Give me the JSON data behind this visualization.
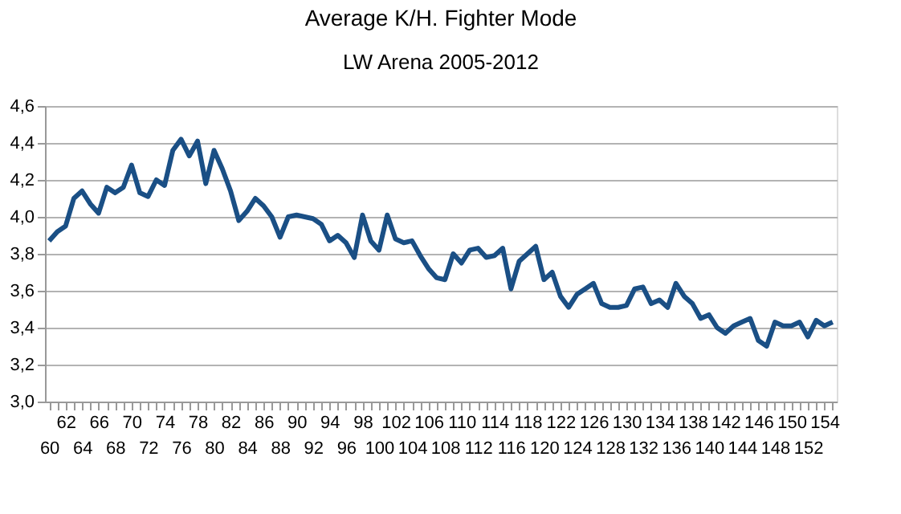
{
  "chart_data": {
    "type": "line",
    "title": "Average K/H. Fighter Mode",
    "subtitle": "LW Arena 2005-2012",
    "categories": [
      "60",
      null,
      "62",
      null,
      "64",
      null,
      "66",
      null,
      "68",
      null,
      "70",
      null,
      "72",
      null,
      "74",
      null,
      "76",
      null,
      "78",
      null,
      "80",
      null,
      "82",
      null,
      "84",
      null,
      "86",
      null,
      "88",
      null,
      "90",
      null,
      "92",
      null,
      "94",
      null,
      "96",
      null,
      "98",
      null,
      "100",
      null,
      "102",
      null,
      "104",
      null,
      "106",
      null,
      "108",
      null,
      "110",
      null,
      "112",
      null,
      "114",
      null,
      "116",
      null,
      "118",
      null,
      "120",
      null,
      "122",
      null,
      "124",
      null,
      "126",
      null,
      "128",
      null,
      "130",
      null,
      "132",
      null,
      "134",
      null,
      "136",
      null,
      "138",
      null,
      "140",
      null,
      "142",
      null,
      "144",
      null,
      "146",
      null,
      "148",
      null,
      "150",
      null,
      "152",
      null,
      "154",
      null
    ],
    "series": [
      {
        "color": "#1a4f85",
        "values": [
          3.87,
          3.92,
          3.95,
          4.1,
          4.14,
          4.07,
          4.02,
          4.16,
          4.13,
          4.16,
          4.28,
          4.13,
          4.11,
          4.2,
          4.17,
          4.36,
          4.42,
          4.33,
          4.41,
          4.18,
          4.36,
          4.26,
          4.14,
          3.98,
          4.03,
          4.1,
          4.06,
          4.0,
          3.89,
          4.0,
          4.01,
          4.0,
          3.99,
          3.96,
          3.87,
          3.9,
          3.86,
          3.78,
          4.01,
          3.87,
          3.82,
          4.01,
          3.88,
          3.86,
          3.87,
          3.79,
          3.72,
          3.67,
          3.66,
          3.8,
          3.75,
          3.82,
          3.83,
          3.78,
          3.79,
          3.83,
          3.61,
          3.76,
          3.8,
          3.84,
          3.66,
          3.7,
          3.57,
          3.51,
          3.58,
          3.61,
          3.64,
          3.53,
          3.51,
          3.51,
          3.52,
          3.61,
          3.62,
          3.53,
          3.55,
          3.51,
          3.64,
          3.57,
          3.53,
          3.45,
          3.47,
          3.4,
          3.37,
          3.41,
          3.43,
          3.45,
          3.33,
          3.3,
          3.43,
          3.41,
          3.41,
          3.43,
          3.35,
          3.44,
          3.41,
          3.43
        ]
      }
    ],
    "ylim": [
      3.0,
      4.6
    ],
    "yticks": [
      {
        "value": 3.0,
        "label": "3,0"
      },
      {
        "value": 3.2,
        "label": "3,2"
      },
      {
        "value": 3.4,
        "label": "3,4"
      },
      {
        "value": 3.6,
        "label": "3,6"
      },
      {
        "value": 3.8,
        "label": "3,8"
      },
      {
        "value": 4.0,
        "label": "4,0"
      },
      {
        "value": 4.2,
        "label": "4,2"
      },
      {
        "value": 4.4,
        "label": "4,4"
      },
      {
        "value": 4.6,
        "label": "4,6"
      }
    ],
    "grid": "y",
    "legend": false,
    "marker": "none",
    "line_style": "solid"
  }
}
